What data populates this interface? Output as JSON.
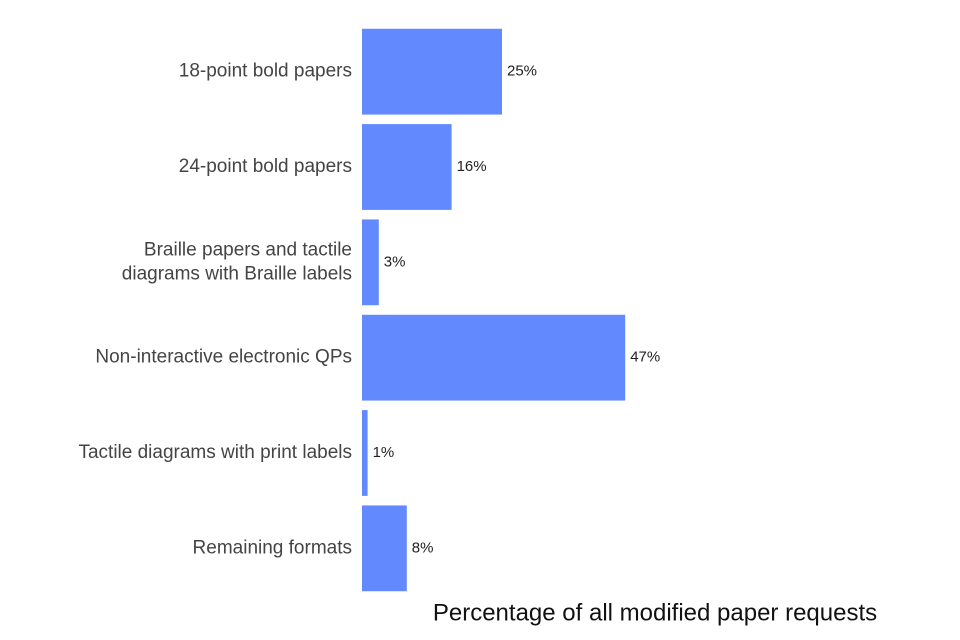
{
  "chart_data": {
    "type": "bar",
    "orientation": "horizontal",
    "x_label": "Percentage of all modified paper requests",
    "categories": [
      "18-point bold papers",
      "24-point bold papers",
      "Braille papers and tactile\ndiagrams with Braille labels",
      "Non-interactive electronic QPs",
      "Tactile diagrams with print labels",
      "Remaining formats"
    ],
    "values": [
      25,
      16,
      3,
      47,
      1,
      8
    ],
    "value_labels": [
      "25%",
      "16%",
      "3%",
      "47%",
      "1%",
      "8%"
    ],
    "color": "#6389ff",
    "xlim": [
      0,
      100
    ]
  }
}
